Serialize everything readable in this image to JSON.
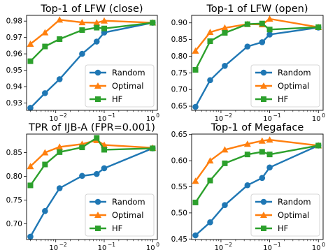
{
  "chart_data": [
    {
      "type": "line",
      "title": "Top-1 of LFW (close)",
      "xscale": "log",
      "xlim": [
        0.0025,
        1.25
      ],
      "ylim": [
        0.9255,
        0.9835
      ],
      "x": [
        0.003,
        0.006,
        0.012,
        0.035,
        0.07,
        0.1,
        1.0
      ],
      "xticks": [
        0.01,
        0.1,
        1.0
      ],
      "xtick_labels": [
        "10",
        "10",
        "10"
      ],
      "xtick_exps": [
        "−2",
        "−1",
        "0"
      ],
      "yticks": [
        0.93,
        0.94,
        0.95,
        0.96,
        0.97,
        0.98
      ],
      "ytick_labels": [
        "0.93",
        "0.94",
        "0.95",
        "0.96",
        "0.97",
        "0.98"
      ],
      "legend_position": "lower-right",
      "grid": false,
      "series": [
        {
          "name": "Random",
          "color": "#1f77b4",
          "marker": "circle",
          "values": [
            0.927,
            0.936,
            0.9445,
            0.96,
            0.9675,
            0.973,
            0.979
          ]
        },
        {
          "name": "Optimal",
          "color": "#ff7f0e",
          "marker": "triangle",
          "values": [
            0.966,
            0.973,
            0.9808,
            0.9792,
            0.979,
            0.9802,
            0.979
          ]
        },
        {
          "name": "HF",
          "color": "#2ca02c",
          "marker": "square",
          "values": [
            0.9555,
            0.9645,
            0.969,
            0.9745,
            0.976,
            0.9755,
            0.979
          ]
        }
      ]
    },
    {
      "type": "line",
      "title": "Top-1 of LFW (open)",
      "xscale": "log",
      "xlim": [
        0.0025,
        1.25
      ],
      "ylim": [
        0.6375,
        0.9225
      ],
      "x": [
        0.003,
        0.006,
        0.012,
        0.035,
        0.07,
        0.1,
        1.0
      ],
      "xticks": [
        0.01,
        0.1,
        1.0
      ],
      "xtick_labels": [
        "10",
        "10",
        "10"
      ],
      "xtick_exps": [
        "−2",
        "−1",
        "0"
      ],
      "yticks": [
        0.65,
        0.7,
        0.75,
        0.8,
        0.85,
        0.9
      ],
      "ytick_labels": [
        "0.65",
        "0.70",
        "0.75",
        "0.80",
        "0.85",
        "0.90"
      ],
      "legend_position": "lower-right",
      "grid": false,
      "series": [
        {
          "name": "Random",
          "color": "#1f77b4",
          "marker": "circle",
          "values": [
            0.648,
            0.728,
            0.771,
            0.829,
            0.842,
            0.865,
            0.886
          ]
        },
        {
          "name": "Optimal",
          "color": "#ff7f0e",
          "marker": "triangle",
          "values": [
            0.816,
            0.872,
            0.885,
            0.896,
            0.895,
            0.912,
            0.887
          ]
        },
        {
          "name": "HF",
          "color": "#2ca02c",
          "marker": "square",
          "values": [
            0.759,
            0.845,
            0.87,
            0.896,
            0.898,
            0.88,
            0.887
          ]
        }
      ]
    },
    {
      "type": "line",
      "title": "TPR of IJB-A (FPR=0.001)",
      "xscale": "log",
      "xlim": [
        0.0025,
        1.25
      ],
      "ylim": [
        0.667,
        0.889
      ],
      "x": [
        0.003,
        0.006,
        0.012,
        0.035,
        0.07,
        0.1,
        1.0
      ],
      "xticks": [
        0.01,
        0.1,
        1.0
      ],
      "xtick_labels": [
        "10",
        "10",
        "10"
      ],
      "xtick_exps": [
        "−2",
        "−1",
        "0"
      ],
      "yticks": [
        0.7,
        0.75,
        0.8,
        0.85
      ],
      "ytick_labels": [
        "0.70",
        "0.75",
        "0.80",
        "0.85"
      ],
      "legend_position": "lower-right",
      "grid": false,
      "series": [
        {
          "name": "Random",
          "color": "#1f77b4",
          "marker": "circle",
          "values": [
            0.673,
            0.727,
            0.775,
            0.801,
            0.805,
            0.817,
            0.859
          ]
        },
        {
          "name": "Optimal",
          "color": "#ff7f0e",
          "marker": "triangle",
          "values": [
            0.821,
            0.85,
            0.862,
            0.868,
            0.876,
            0.866,
            0.86
          ]
        },
        {
          "name": "HF",
          "color": "#2ca02c",
          "marker": "square",
          "values": [
            0.781,
            0.825,
            0.851,
            0.861,
            0.881,
            0.856,
            0.859
          ]
        }
      ]
    },
    {
      "type": "line",
      "title": "Top-1 of Megaface",
      "xscale": "log",
      "xlim": [
        0.0025,
        1.25
      ],
      "ylim": [
        0.449,
        0.651
      ],
      "x": [
        0.003,
        0.006,
        0.012,
        0.035,
        0.07,
        0.1,
        1.0
      ],
      "xticks": [
        0.01,
        0.1,
        1.0
      ],
      "xtick_labels": [
        "10",
        "10",
        "10"
      ],
      "xtick_exps": [
        "−2",
        "−1",
        "0"
      ],
      "yticks": [
        0.45,
        0.5,
        0.55,
        0.6,
        0.65
      ],
      "ytick_labels": [
        "0.45",
        "0.50",
        "0.55",
        "0.60",
        "0.65"
      ],
      "legend_position": "lower-right",
      "grid": false,
      "series": [
        {
          "name": "Random",
          "color": "#1f77b4",
          "marker": "circle",
          "values": [
            0.457,
            0.482,
            0.515,
            0.553,
            0.567,
            0.587,
            0.629
          ]
        },
        {
          "name": "Optimal",
          "color": "#ff7f0e",
          "marker": "triangle",
          "values": [
            0.561,
            0.6,
            0.621,
            0.632,
            0.638,
            0.64,
            0.629
          ]
        },
        {
          "name": "HF",
          "color": "#2ca02c",
          "marker": "square",
          "values": [
            0.52,
            0.562,
            0.595,
            0.612,
            0.617,
            0.612,
            0.629
          ]
        }
      ]
    }
  ]
}
